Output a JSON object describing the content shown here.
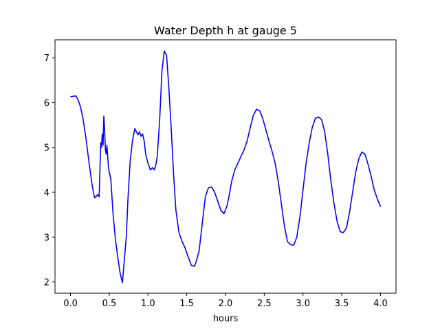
{
  "chart_data": {
    "type": "line",
    "title": "Water Depth h at gauge 5",
    "xlabel": "hours",
    "ylabel": "",
    "xlim": [
      -0.2,
      4.2
    ],
    "ylim": [
      1.75,
      7.4
    ],
    "xticks": [
      0.0,
      0.5,
      1.0,
      1.5,
      2.0,
      2.5,
      3.0,
      3.5,
      4.0
    ],
    "xtick_labels": [
      "0.0",
      "0.5",
      "1.0",
      "1.5",
      "2.0",
      "2.5",
      "3.0",
      "3.5",
      "4.0"
    ],
    "yticks": [
      2,
      3,
      4,
      5,
      6,
      7
    ],
    "ytick_labels": [
      "2",
      "3",
      "4",
      "5",
      "6",
      "7"
    ],
    "grid": false,
    "series": [
      {
        "color": "#0000ff",
        "x": [
          0.0,
          0.03,
          0.07,
          0.1,
          0.13,
          0.16,
          0.2,
          0.24,
          0.28,
          0.31,
          0.33,
          0.35,
          0.37,
          0.38,
          0.39,
          0.4,
          0.41,
          0.42,
          0.43,
          0.44,
          0.45,
          0.46,
          0.47,
          0.48,
          0.49,
          0.5,
          0.52,
          0.55,
          0.58,
          0.61,
          0.64,
          0.67,
          0.7,
          0.72,
          0.74,
          0.77,
          0.8,
          0.83,
          0.85,
          0.87,
          0.89,
          0.91,
          0.93,
          0.95,
          0.97,
          1.0,
          1.03,
          1.06,
          1.08,
          1.1,
          1.12,
          1.15,
          1.18,
          1.21,
          1.24,
          1.27,
          1.3,
          1.33,
          1.36,
          1.4,
          1.44,
          1.48,
          1.52,
          1.56,
          1.6,
          1.63,
          1.66,
          1.7,
          1.74,
          1.78,
          1.82,
          1.86,
          1.9,
          1.94,
          1.98,
          2.02,
          2.05,
          2.08,
          2.12,
          2.16,
          2.2,
          2.24,
          2.28,
          2.32,
          2.36,
          2.4,
          2.44,
          2.48,
          2.52,
          2.56,
          2.6,
          2.64,
          2.68,
          2.72,
          2.76,
          2.8,
          2.84,
          2.88,
          2.92,
          2.96,
          3.0,
          3.04,
          3.08,
          3.12,
          3.16,
          3.2,
          3.24,
          3.28,
          3.32,
          3.36,
          3.4,
          3.44,
          3.48,
          3.52,
          3.56,
          3.6,
          3.64,
          3.68,
          3.72,
          3.76,
          3.8,
          3.84,
          3.88,
          3.92,
          3.96,
          4.0
        ],
        "y": [
          6.13,
          6.14,
          6.15,
          6.05,
          5.9,
          5.65,
          5.2,
          4.65,
          4.15,
          3.88,
          3.9,
          3.95,
          3.9,
          4.5,
          5.1,
          5.0,
          5.3,
          5.05,
          5.7,
          5.4,
          4.95,
          4.85,
          5.05,
          4.8,
          4.55,
          4.45,
          4.3,
          3.5,
          2.95,
          2.55,
          2.2,
          1.98,
          2.6,
          3.0,
          3.8,
          4.7,
          5.15,
          5.42,
          5.35,
          5.28,
          5.35,
          5.25,
          5.3,
          5.15,
          4.85,
          4.65,
          4.5,
          4.55,
          4.5,
          4.6,
          4.8,
          5.6,
          6.7,
          7.15,
          7.05,
          6.3,
          5.4,
          4.4,
          3.6,
          3.1,
          2.9,
          2.75,
          2.55,
          2.37,
          2.35,
          2.5,
          2.7,
          3.3,
          3.9,
          4.1,
          4.12,
          4.0,
          3.8,
          3.6,
          3.52,
          3.7,
          3.95,
          4.25,
          4.5,
          4.65,
          4.8,
          4.95,
          5.15,
          5.45,
          5.72,
          5.85,
          5.82,
          5.65,
          5.4,
          5.15,
          4.92,
          4.65,
          4.25,
          3.75,
          3.25,
          2.9,
          2.83,
          2.82,
          3.0,
          3.45,
          4.05,
          4.65,
          5.1,
          5.45,
          5.65,
          5.68,
          5.62,
          5.35,
          4.85,
          4.25,
          3.75,
          3.35,
          3.12,
          3.1,
          3.2,
          3.55,
          4.0,
          4.45,
          4.75,
          4.9,
          4.85,
          4.62,
          4.35,
          4.05,
          3.85,
          3.68
        ]
      }
    ]
  }
}
